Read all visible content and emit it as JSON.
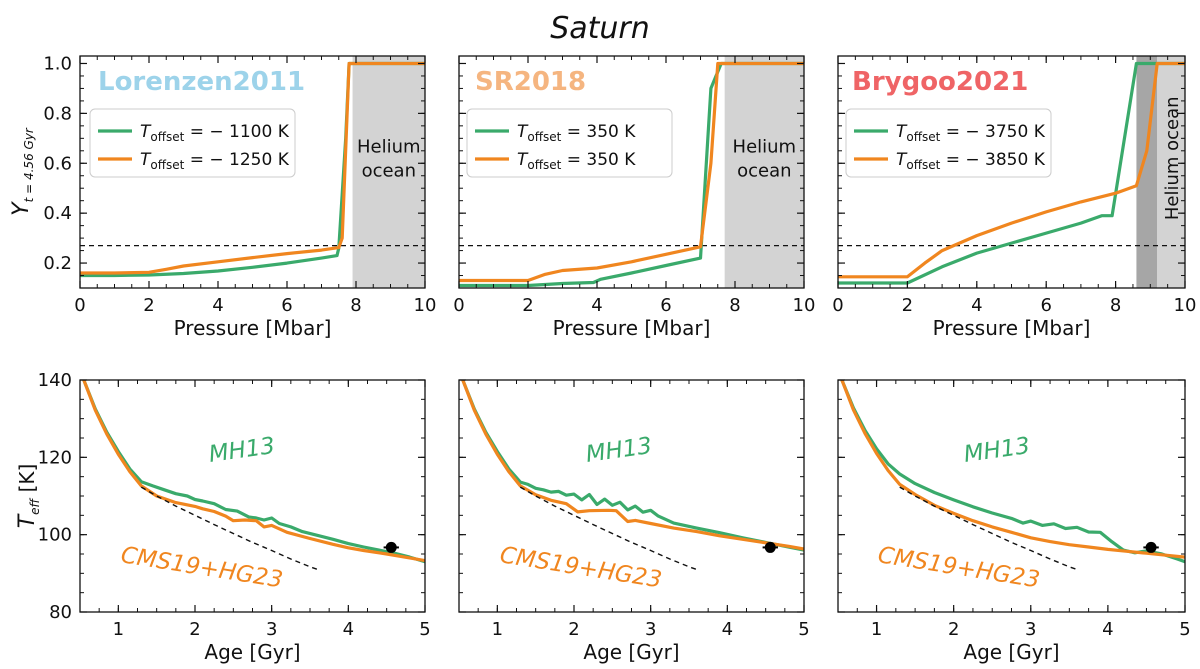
{
  "figure_title": "Saturn",
  "colors": {
    "green": "#3aaa6b",
    "orange": "#f0861f",
    "lorenzen": "#9dd3ea",
    "sr": "#f5b580",
    "brygoo": "#ef6466",
    "ocean": "#d3d3d3",
    "ocean_dark": "#a6a6a6"
  },
  "chart_data": [
    {
      "type": "line",
      "panel": "top-left",
      "annotation": "Lorenzen2011",
      "xlabel": "Pressure [Mbar]",
      "ylabel": "Y_{t=4.56 Gyr}",
      "xlim": [
        0,
        10
      ],
      "ylim": [
        0.1,
        1.03
      ],
      "xticks": [
        "0",
        "2",
        "4",
        "6",
        "8",
        "10"
      ],
      "yticks": [
        "0.2",
        "0.4",
        "0.6",
        "0.8",
        "1.0"
      ],
      "hline": 0.27,
      "region": {
        "label": "Helium ocean",
        "lines": [
          "Helium",
          "ocean"
        ],
        "x0": 7.9,
        "x1": 10
      },
      "legend": [
        {
          "prefix": "T",
          "sub": "offset",
          "text": " = − 1100 K",
          "color": "green"
        },
        {
          "prefix": "T",
          "sub": "offset",
          "text": " = − 1250 K",
          "color": "orange"
        }
      ],
      "series": [
        {
          "name": "green",
          "x": [
            0,
            1,
            2,
            3,
            4,
            5,
            6,
            7,
            7.45,
            7.5,
            7.7,
            7.8,
            10
          ],
          "y": [
            0.15,
            0.15,
            0.152,
            0.158,
            0.168,
            0.183,
            0.2,
            0.22,
            0.23,
            0.26,
            0.7,
            1.0,
            1.0
          ]
        },
        {
          "name": "orange",
          "x": [
            0,
            1,
            2,
            2.5,
            3,
            4,
            5,
            6,
            7,
            7.5,
            7.6,
            7.8,
            10
          ],
          "y": [
            0.16,
            0.16,
            0.163,
            0.175,
            0.188,
            0.205,
            0.222,
            0.238,
            0.252,
            0.262,
            0.3,
            1.0,
            1.0
          ]
        }
      ]
    },
    {
      "type": "line",
      "panel": "top-middle",
      "annotation": "SR2018",
      "xlabel": "Pressure [Mbar]",
      "xlim": [
        0,
        10
      ],
      "ylim": [
        0.1,
        1.03
      ],
      "xticks": [
        "0",
        "2",
        "4",
        "6",
        "8",
        "10"
      ],
      "hline": 0.27,
      "region": {
        "label": "Helium ocean",
        "lines": [
          "Helium",
          "ocean"
        ],
        "x0": 7.7,
        "x1": 10
      },
      "legend": [
        {
          "prefix": "T",
          "sub": "offset",
          "text": " = 350 K",
          "color": "green"
        },
        {
          "prefix": "T",
          "sub": "offset",
          "text": " = 350 K",
          "color": "orange"
        }
      ],
      "series": [
        {
          "name": "green",
          "x": [
            0,
            2,
            3,
            3.9,
            4.1,
            5,
            6,
            7,
            7.3,
            7.6,
            10
          ],
          "y": [
            0.11,
            0.11,
            0.118,
            0.122,
            0.135,
            0.16,
            0.19,
            0.22,
            0.9,
            1.0,
            1.0
          ]
        },
        {
          "name": "orange",
          "x": [
            0,
            1,
            2,
            2.5,
            3,
            4,
            5,
            6,
            7,
            7.3,
            7.5,
            10
          ],
          "y": [
            0.13,
            0.13,
            0.13,
            0.155,
            0.17,
            0.18,
            0.205,
            0.235,
            0.265,
            0.6,
            1.0,
            1.0
          ]
        }
      ]
    },
    {
      "type": "line",
      "panel": "top-right",
      "annotation": "Brygoo2021",
      "xlabel": "Pressure [Mbar]",
      "xlim": [
        0,
        10
      ],
      "ylim": [
        0.1,
        1.03
      ],
      "xticks": [
        "0",
        "2",
        "4",
        "6",
        "8",
        "10"
      ],
      "hline": 0.27,
      "region": {
        "label": "Helium ocean",
        "lines": [
          "Helium ocean"
        ],
        "vertical": true,
        "x0": 8.6,
        "x1": 9.2,
        "x2": 10
      },
      "legend": [
        {
          "prefix": "T",
          "sub": "offset",
          "text": " = − 3750 K",
          "color": "green"
        },
        {
          "prefix": "T",
          "sub": "offset",
          "text": " = − 3850 K",
          "color": "orange"
        }
      ],
      "series": [
        {
          "name": "green",
          "x": [
            0,
            1,
            2,
            3,
            4,
            5,
            6,
            7,
            7.6,
            7.9,
            8.6,
            10
          ],
          "y": [
            0.12,
            0.12,
            0.12,
            0.185,
            0.24,
            0.28,
            0.32,
            0.36,
            0.39,
            0.39,
            1.0,
            1.0
          ]
        },
        {
          "name": "orange",
          "x": [
            0,
            1,
            2,
            2.5,
            3,
            4,
            5,
            6,
            7,
            8,
            8.6,
            8.9,
            9.2,
            10
          ],
          "y": [
            0.145,
            0.145,
            0.145,
            0.2,
            0.25,
            0.31,
            0.36,
            0.405,
            0.445,
            0.48,
            0.51,
            0.65,
            1.0,
            1.0
          ]
        }
      ]
    },
    {
      "type": "line",
      "panel": "bottom-left",
      "xlabel": "Age [Gyr]",
      "ylabel": "T_eff [K]",
      "xlim": [
        0.5,
        5
      ],
      "ylim": [
        80,
        140
      ],
      "xticks": [
        "1",
        "2",
        "3",
        "4",
        "5"
      ],
      "yticks": [
        "80",
        "100",
        "120",
        "140"
      ],
      "labels": {
        "green": "MH13",
        "orange": "CMS19+HG23"
      },
      "observation": {
        "x": 4.56,
        "y": 96.7,
        "xerr": 0.05
      },
      "series": [
        {
          "name": "MH13",
          "x": [
            0.55,
            0.7,
            0.85,
            1.0,
            1.15,
            1.3,
            1.45,
            1.6,
            1.75,
            1.9,
            2.0,
            2.1,
            2.25,
            2.4,
            2.55,
            2.7,
            2.8,
            2.9,
            3.0,
            3.1,
            3.25,
            3.4,
            3.6,
            3.8,
            4.0,
            4.2,
            4.4,
            4.6,
            4.8,
            5.0
          ],
          "y": [
            140,
            132.5,
            126.5,
            121.5,
            117.0,
            113.7,
            112.6,
            111.6,
            110.6,
            110.0,
            109.1,
            108.7,
            108.0,
            106.5,
            106.1,
            104.6,
            104.3,
            103.8,
            104.3,
            102.9,
            102.0,
            100.8,
            99.8,
            98.8,
            97.7,
            96.8,
            96.0,
            95.2,
            94.2,
            93.0
          ]
        },
        {
          "name": "CMS19+HG23",
          "x": [
            0.55,
            0.7,
            0.85,
            1.0,
            1.15,
            1.3,
            1.5,
            1.75,
            2.0,
            2.1,
            2.25,
            2.4,
            2.5,
            2.65,
            2.8,
            2.9,
            3.0,
            3.2,
            3.5,
            3.8,
            4.0,
            4.2,
            4.5,
            4.8,
            5.0
          ],
          "y": [
            140,
            132.2,
            126.0,
            120.8,
            116.3,
            112.6,
            110.0,
            108.3,
            107.3,
            106.7,
            106.0,
            104.8,
            103.6,
            103.8,
            103.6,
            102.0,
            102.4,
            100.6,
            99.0,
            97.5,
            96.6,
            95.9,
            95.0,
            94.0,
            93.3
          ]
        },
        {
          "name": "dashed",
          "x": [
            1.3,
            1.5,
            1.75,
            2.0,
            2.25,
            2.5,
            2.75,
            3.0,
            3.25,
            3.5,
            3.6
          ],
          "y": [
            112.3,
            110.0,
            107.4,
            105.0,
            102.6,
            100.3,
            98.0,
            95.9,
            93.7,
            91.7,
            91.0
          ]
        }
      ]
    },
    {
      "type": "line",
      "panel": "bottom-middle",
      "xlabel": "Age [Gyr]",
      "xlim": [
        0.5,
        5
      ],
      "ylim": [
        80,
        140
      ],
      "xticks": [
        "1",
        "2",
        "3",
        "4",
        "5"
      ],
      "labels": {
        "green": "MH13",
        "orange": "CMS19+HG23"
      },
      "observation": {
        "x": 4.56,
        "y": 96.7,
        "xerr": 0.05
      },
      "series": [
        {
          "name": "MH13",
          "x": [
            0.55,
            0.7,
            0.85,
            1.0,
            1.15,
            1.3,
            1.4,
            1.5,
            1.6,
            1.7,
            1.8,
            1.9,
            2.0,
            2.1,
            2.2,
            2.3,
            2.4,
            2.5,
            2.6,
            2.7,
            2.8,
            2.9,
            3.0,
            3.1,
            3.3,
            3.6,
            3.9,
            4.2,
            4.5,
            4.8,
            5.0
          ],
          "y": [
            140,
            132.5,
            126.5,
            121.5,
            117.0,
            113.6,
            113.0,
            112.0,
            111.6,
            111.0,
            111.2,
            110.2,
            110.5,
            109.0,
            110.4,
            107.8,
            109.2,
            107.6,
            108.4,
            106.4,
            107.4,
            105.8,
            106.3,
            104.8,
            103.0,
            101.7,
            100.5,
            99.2,
            98.0,
            96.8,
            96.0
          ]
        },
        {
          "name": "CMS19+HG23",
          "x": [
            0.55,
            0.7,
            0.85,
            1.0,
            1.15,
            1.3,
            1.5,
            1.7,
            1.9,
            2.05,
            2.2,
            2.45,
            2.55,
            2.7,
            2.8,
            3.0,
            3.3,
            3.6,
            3.9,
            4.2,
            4.5,
            4.8,
            5.0
          ],
          "y": [
            140,
            132.2,
            126.0,
            120.8,
            116.3,
            112.6,
            110.3,
            108.9,
            108.0,
            105.9,
            106.2,
            106.3,
            106.2,
            103.4,
            103.7,
            102.9,
            101.7,
            100.8,
            99.7,
            98.8,
            97.9,
            97.0,
            96.3
          ]
        },
        {
          "name": "dashed",
          "x": [
            1.3,
            1.5,
            1.75,
            2.0,
            2.25,
            2.5,
            2.75,
            3.0,
            3.25,
            3.5,
            3.6
          ],
          "y": [
            112.3,
            110.0,
            107.4,
            105.0,
            102.6,
            100.3,
            98.0,
            95.9,
            93.7,
            91.7,
            91.0
          ]
        }
      ]
    },
    {
      "type": "line",
      "panel": "bottom-right",
      "xlabel": "Age [Gyr]",
      "xlim": [
        0.5,
        5
      ],
      "ylim": [
        80,
        140
      ],
      "xticks": [
        "1",
        "2",
        "3",
        "4",
        "5"
      ],
      "labels": {
        "green": "MH13",
        "orange": "CMS19+HG23"
      },
      "observation": {
        "x": 4.56,
        "y": 96.7,
        "xerr": 0.05
      },
      "series": [
        {
          "name": "MH13",
          "x": [
            0.55,
            0.7,
            0.85,
            1.0,
            1.15,
            1.3,
            1.5,
            1.75,
            2.0,
            2.25,
            2.5,
            2.75,
            2.9,
            3.0,
            3.15,
            3.3,
            3.45,
            3.6,
            3.75,
            3.9,
            4.05,
            4.2,
            4.35,
            4.5,
            4.7,
            4.9,
            5.0
          ],
          "y": [
            140,
            132.8,
            127.0,
            122.2,
            118.3,
            115.7,
            113.2,
            110.9,
            109.0,
            107.2,
            105.6,
            104.2,
            103.0,
            103.5,
            102.4,
            102.8,
            101.6,
            101.9,
            100.7,
            100.6,
            98.2,
            96.0,
            95.3,
            95.8,
            95.0,
            93.7,
            93.0
          ]
        },
        {
          "name": "CMS19+HG23",
          "x": [
            0.55,
            0.7,
            0.85,
            1.0,
            1.15,
            1.3,
            1.5,
            1.75,
            2.0,
            2.25,
            2.5,
            2.75,
            3.0,
            3.25,
            3.5,
            3.75,
            4.0,
            4.25,
            4.5,
            4.75,
            5.0
          ],
          "y": [
            140,
            132.3,
            126.2,
            121.0,
            116.6,
            113.0,
            110.4,
            107.6,
            105.5,
            103.6,
            102.0,
            100.6,
            99.2,
            98.2,
            97.4,
            96.8,
            96.2,
            95.7,
            95.2,
            94.7,
            94.2
          ]
        },
        {
          "name": "dashed",
          "x": [
            1.3,
            1.5,
            1.75,
            2.0,
            2.25,
            2.5,
            2.75,
            3.0,
            3.25,
            3.5,
            3.6
          ],
          "y": [
            112.3,
            110.0,
            107.4,
            105.0,
            102.6,
            100.3,
            98.0,
            95.9,
            93.7,
            91.7,
            91.0
          ]
        }
      ]
    }
  ]
}
